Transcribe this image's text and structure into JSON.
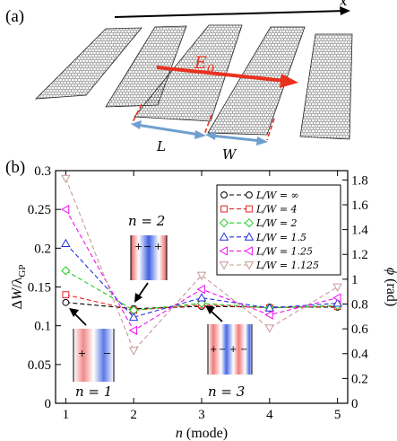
{
  "panel_a": {
    "label": "(a)",
    "x_axis_label": "x",
    "field_label": "E",
    "field_subscript": "0",
    "length_label": "L",
    "width_label": "W",
    "colors": {
      "field_arrow": "#e8321e",
      "dimension_arrow": "#6fa0cf",
      "edge_dash": "#e8321e"
    }
  },
  "panel_b": {
    "label": "(b)",
    "mode_insets": [
      {
        "label": "n = 2",
        "mode": 2
      },
      {
        "label": "n = 1",
        "mode": 1
      },
      {
        "label": "n = 3",
        "mode": 3
      }
    ]
  },
  "chart_data": {
    "type": "line",
    "xlabel": "n (mode)",
    "ylabel": "ΔW/λ_GP",
    "y2label": "ϕ (rad)",
    "x": [
      1,
      2,
      3,
      4,
      5
    ],
    "xticks": [
      "1",
      "2",
      "3",
      "4",
      "5"
    ],
    "xlim": [
      0.85,
      5.15
    ],
    "ylim": [
      0,
      0.3
    ],
    "yticks": [
      "0",
      "0.05",
      "0.1",
      "0.15",
      "0.2",
      "0.25",
      "0.3"
    ],
    "y2lim": [
      0,
      1.875
    ],
    "y2ticks": [
      "0",
      "0.2",
      "0.4",
      "0.6",
      "0.8",
      "1",
      "1.2",
      "1.4",
      "1.6",
      "1.8"
    ],
    "grid": false,
    "legend_position": "top-right",
    "series": [
      {
        "name": "L/W = ∞",
        "color": "#000000",
        "marker": "circle",
        "values": [
          0.13,
          0.122,
          0.125,
          0.124,
          0.124
        ]
      },
      {
        "name": "L/W = 4",
        "color": "#e8202a",
        "marker": "square",
        "values": [
          0.14,
          0.12,
          0.127,
          0.123,
          0.125
        ]
      },
      {
        "name": "L/W = 2",
        "color": "#22cc22",
        "marker": "diamond",
        "values": [
          0.171,
          0.12,
          0.129,
          0.123,
          0.126
        ]
      },
      {
        "name": "L/W = 1.5",
        "color": "#2233dd",
        "marker": "triangle-up",
        "values": [
          0.206,
          0.111,
          0.136,
          0.123,
          0.129
        ]
      },
      {
        "name": "L/W = 1.25",
        "color": "#ee11ee",
        "marker": "triangle-left",
        "values": [
          0.25,
          0.094,
          0.147,
          0.114,
          0.136
        ]
      },
      {
        "name": "L/W = 1.125",
        "color": "#c79a96",
        "marker": "triangle-down",
        "values": [
          0.29,
          0.068,
          0.165,
          0.097,
          0.15
        ]
      }
    ]
  }
}
